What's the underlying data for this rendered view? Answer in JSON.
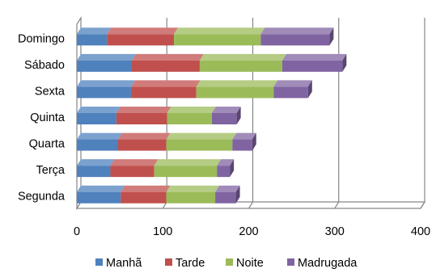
{
  "chart_data": {
    "type": "bar",
    "orientation": "horizontal",
    "stacked": true,
    "three_d": true,
    "categories": [
      "Segunda",
      "Terça",
      "Quarta",
      "Quinta",
      "Sexta",
      "Sábado",
      "Domingo"
    ],
    "series": [
      {
        "name": "Manhã",
        "color": "#4F81BD",
        "values": [
          51,
          39,
          48,
          46,
          63,
          64,
          35
        ]
      },
      {
        "name": "Tarde",
        "color": "#C0504D",
        "values": [
          53,
          51,
          56,
          59,
          76,
          79,
          78
        ]
      },
      {
        "name": "Noite",
        "color": "#9BBB59",
        "values": [
          57,
          73,
          77,
          52,
          90,
          96,
          101
        ]
      },
      {
        "name": "Madrugada",
        "color": "#8064A2",
        "values": [
          24,
          15,
          23,
          29,
          40,
          70,
          80
        ]
      }
    ],
    "xlim": [
      0,
      400
    ],
    "x_ticks": [
      "0",
      "100",
      "200",
      "300",
      "400"
    ],
    "grid": true,
    "legend_position": "bottom"
  }
}
